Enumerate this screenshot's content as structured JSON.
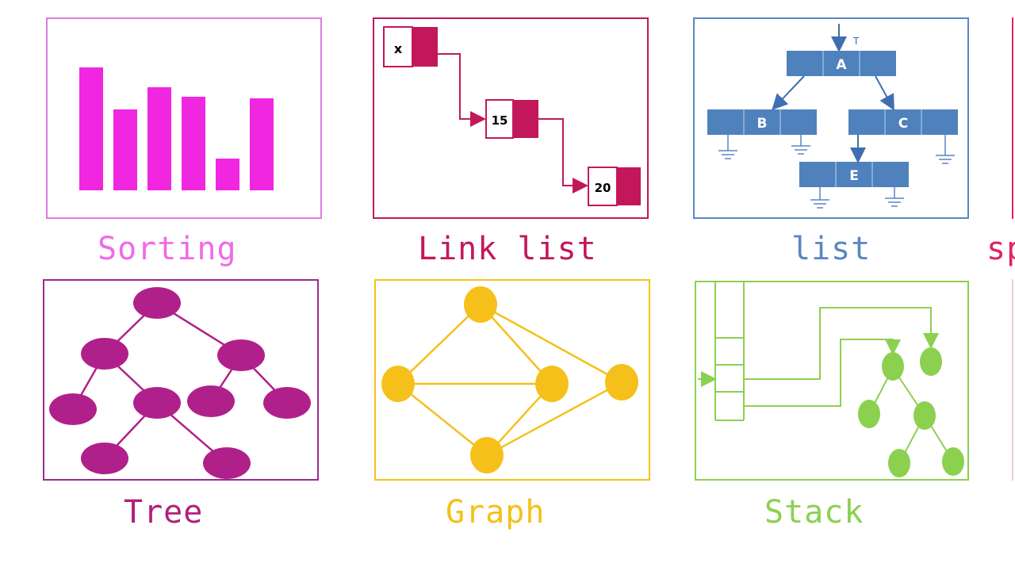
{
  "panels": {
    "sorting": {
      "caption": "Sorting",
      "color": "#f026e0",
      "bar_heights_relative": [
        155,
        102,
        130,
        118,
        40,
        116
      ]
    },
    "link_list": {
      "caption": "Link list",
      "color": "#c2185b",
      "nodes": [
        "x",
        "15",
        "20"
      ]
    },
    "list": {
      "caption": "list",
      "color": "#4f81bd",
      "node_a": "A",
      "node_b": "B",
      "node_c": "C",
      "node_e": "E",
      "top_mark": "T"
    },
    "partial_right_top": {
      "caption": "sp",
      "color": "#e0245e"
    },
    "tree": {
      "caption": "Tree",
      "color": "#b0208a"
    },
    "graph": {
      "caption": "Graph",
      "color": "#f5c01a"
    },
    "stack": {
      "caption": "Stack",
      "color": "#8cd050"
    }
  }
}
